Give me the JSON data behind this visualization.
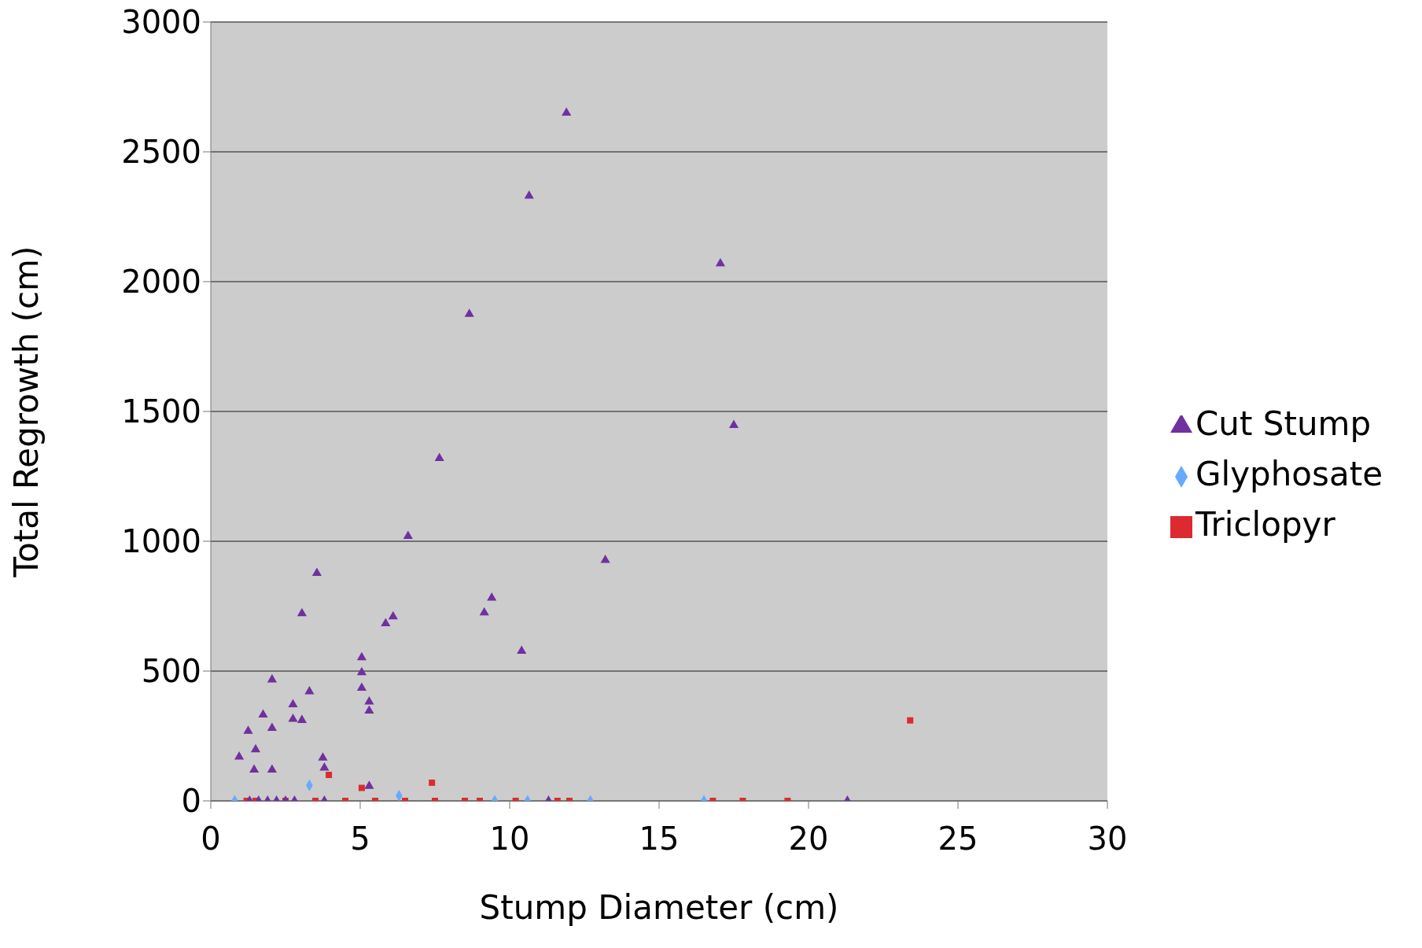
{
  "chart_data": {
    "type": "scatter",
    "xlabel": "Stump Diameter (cm)",
    "ylabel": "Total Regrowth (cm)",
    "xlim": [
      0,
      30
    ],
    "xticks": [
      0,
      5,
      10,
      15,
      20,
      25,
      30
    ],
    "ylim": [
      0,
      3000
    ],
    "yticks": [
      0,
      500,
      1000,
      1500,
      2000,
      2500,
      3000
    ],
    "grid": "y",
    "legend": "right",
    "series": [
      {
        "name": "Glyphosate",
        "color": "#66aaff",
        "marker": "diamond",
        "x": [
          0.8,
          3.3,
          6.3,
          9.5,
          10.6,
          12.7,
          16.5
        ],
        "values": [
          0,
          60,
          20,
          0,
          0,
          0,
          0
        ]
      },
      {
        "name": "Triclopyr",
        "color": "#dd2a30",
        "marker": "square",
        "x": [
          1.2,
          1.5,
          2.5,
          3.5,
          3.95,
          4.5,
          5.05,
          5.5,
          6.5,
          7.4,
          7.5,
          8.5,
          9.0,
          10.2,
          11.6,
          12.0,
          16.8,
          17.8,
          19.3,
          23.4
        ],
        "values": [
          0,
          0,
          0,
          0,
          100,
          0,
          50,
          0,
          0,
          70,
          0,
          0,
          0,
          0,
          0,
          0,
          0,
          0,
          0,
          310
        ]
      },
      {
        "name": "Cut Stump",
        "color": "#7030a0",
        "marker": "triangle",
        "x": [
          11.9,
          10.65,
          17.05,
          8.65,
          17.5,
          7.65,
          6.6,
          13.2,
          3.55,
          9.4,
          9.15,
          3.05,
          6.1,
          5.85,
          10.4,
          5.05,
          5.05,
          2.05,
          5.05,
          3.3,
          5.3,
          2.75,
          5.3,
          1.75,
          2.75,
          3.05,
          2.05,
          1.25,
          1.5,
          0.95,
          3.75,
          3.8,
          1.45,
          2.05,
          5.3,
          1.3,
          1.6,
          1.9,
          2.2,
          2.5,
          2.8,
          3.8,
          11.3,
          21.3
        ],
        "values": [
          2650,
          2330,
          2070,
          1875,
          1447,
          1320,
          1020,
          927,
          877,
          782,
          725,
          722,
          710,
          683,
          577,
          552,
          495,
          467,
          435,
          421,
          382,
          371,
          347,
          332,
          315,
          311,
          280,
          269,
          198,
          170,
          166,
          127,
          120,
          120,
          57,
          0,
          0,
          0,
          0,
          0,
          0,
          0,
          0,
          0
        ]
      }
    ]
  }
}
